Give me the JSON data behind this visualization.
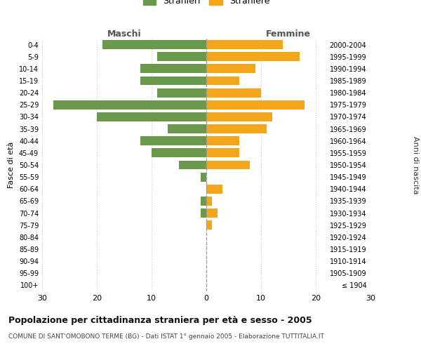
{
  "age_groups": [
    "100+",
    "95-99",
    "90-94",
    "85-89",
    "80-84",
    "75-79",
    "70-74",
    "65-69",
    "60-64",
    "55-59",
    "50-54",
    "45-49",
    "40-44",
    "35-39",
    "30-34",
    "25-29",
    "20-24",
    "15-19",
    "10-14",
    "5-9",
    "0-4"
  ],
  "birth_years": [
    "≤ 1904",
    "1905-1909",
    "1910-1914",
    "1915-1919",
    "1920-1924",
    "1925-1929",
    "1930-1934",
    "1935-1939",
    "1940-1944",
    "1945-1949",
    "1950-1954",
    "1955-1959",
    "1960-1964",
    "1965-1969",
    "1970-1974",
    "1975-1979",
    "1980-1984",
    "1985-1989",
    "1990-1994",
    "1995-1999",
    "2000-2004"
  ],
  "males": [
    0,
    0,
    0,
    0,
    0,
    0,
    1,
    1,
    0,
    1,
    5,
    10,
    12,
    7,
    20,
    28,
    9,
    12,
    12,
    9,
    19
  ],
  "females": [
    0,
    0,
    0,
    0,
    0,
    1,
    2,
    1,
    3,
    0,
    8,
    6,
    6,
    11,
    12,
    18,
    10,
    6,
    9,
    17,
    14
  ],
  "male_color": "#6a994e",
  "female_color": "#f4a61a",
  "grid_color": "#cccccc",
  "center_line_color": "#999999",
  "title": "Popolazione per cittadinanza straniera per età e sesso - 2005",
  "subtitle": "COMUNE DI SANT'OMOBONO TERME (BG) - Dati ISTAT 1° gennaio 2005 - Elaborazione TUTTITALIA.IT",
  "xlabel_left": "Maschi",
  "xlabel_right": "Femmine",
  "ylabel_left": "Fasce di età",
  "ylabel_right": "Anni di nascita",
  "legend_male": "Stranieri",
  "legend_female": "Straniere",
  "xlim": 30,
  "background_color": "#ffffff"
}
